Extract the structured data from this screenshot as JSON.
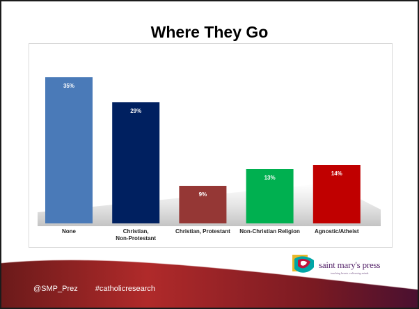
{
  "slide": {
    "title": "Where They Go"
  },
  "chart_data": {
    "type": "bar",
    "title": "Where They Go",
    "categories": [
      "None",
      "Christian, Non-Protestant",
      "Christian, Protestant",
      "Non-Christian Religion",
      "Agnostic/Atheist"
    ],
    "category_lines": [
      [
        "None"
      ],
      [
        "Christian,",
        "Non-Protestant"
      ],
      [
        "Christian, Protestant"
      ],
      [
        "Non-Christian Religion"
      ],
      [
        "Agnostic/Atheist"
      ]
    ],
    "values": [
      35,
      29,
      9,
      13,
      14
    ],
    "value_labels": [
      "35%",
      "29%",
      "9%",
      "13%",
      "14%"
    ],
    "colors": [
      "#4a7ab8",
      "#002060",
      "#953735",
      "#00b050",
      "#c00000"
    ],
    "ylim": [
      0,
      40
    ],
    "grid": false,
    "legend": "none"
  },
  "footer": {
    "handle": "@SMP_Prez",
    "hashtag": "#catholicresearch"
  },
  "logo": {
    "name": "saint mary's press",
    "tagline": "touching hearts. enlivening minds."
  }
}
